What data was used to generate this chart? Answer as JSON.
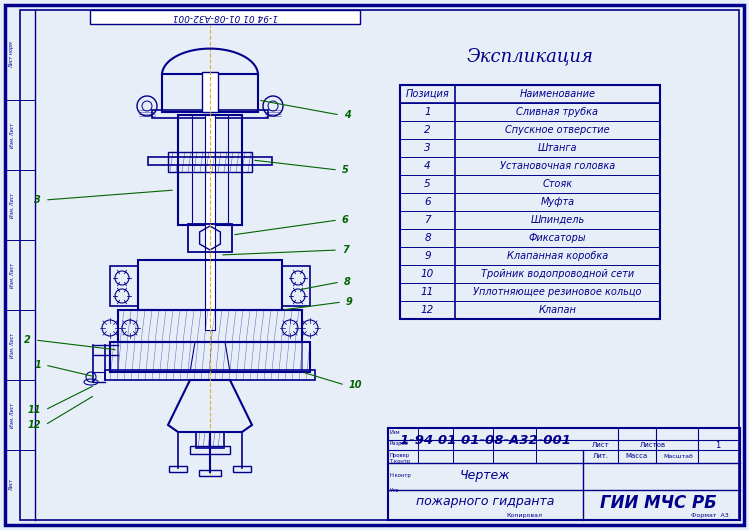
{
  "title": "Экспликация",
  "table_title": "Экспликация",
  "col_headers": [
    "Позиция",
    "Наименование"
  ],
  "rows": [
    [
      "1",
      "Сливная трубка"
    ],
    [
      "2",
      "Спускное отверстие"
    ],
    [
      "3",
      "Штанга"
    ],
    [
      "4",
      "Установочная головка"
    ],
    [
      "5",
      "Стояк"
    ],
    [
      "6",
      "Муфта"
    ],
    [
      "7",
      "Шпиндель"
    ],
    [
      "8",
      "Фиксаторы"
    ],
    [
      "9",
      "Клапанная коробка"
    ],
    [
      "10",
      "Тройник водопроводной сети"
    ],
    [
      "11",
      "Уплотняющее резиновое кольцо"
    ],
    [
      "12",
      "Клапан"
    ]
  ],
  "drawing_title_line1": "Чертеж",
  "drawing_title_line2": "пожарного гидранта",
  "doc_number": "1-94 01 01-08-А32-001",
  "organization": "ГИИ МЧС РБ",
  "format": "А3",
  "border_color": "#00008B",
  "line_color": "#00008B",
  "bg_color": "#e8eef8",
  "paper_color": "#f5f7ff",
  "hydrant_line_color": "#00008B",
  "annotation_color": "#006400",
  "centerline_color": "#DAA520"
}
